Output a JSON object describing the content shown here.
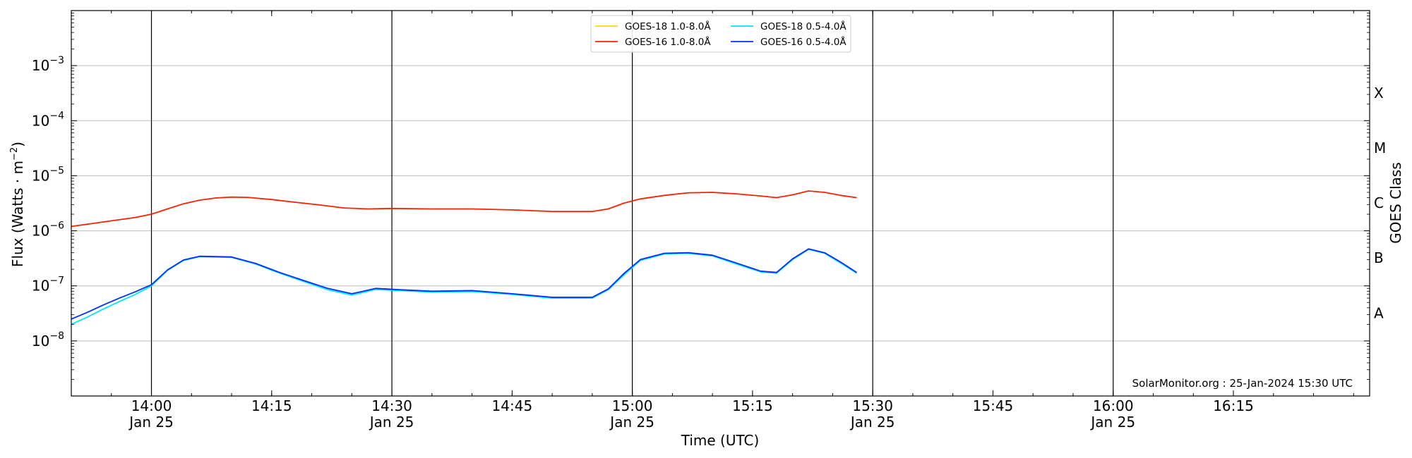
{
  "chart_data": {
    "type": "line",
    "title": "",
    "xlabel": "Time (UTC)",
    "ylabel": "Flux (Watts · m⁻²)",
    "ylabel_right": "GOES Class",
    "y_scale": "log",
    "ylim": [
      1e-09,
      0.01
    ],
    "xlim": [
      "2024-01-25 13:50",
      "2024-01-25 16:32"
    ],
    "x_ticks": [
      {
        "time": "2024-01-25 14:00",
        "label": "14:00",
        "sublabel": "Jan 25"
      },
      {
        "time": "2024-01-25 14:15",
        "label": "14:15",
        "sublabel": ""
      },
      {
        "time": "2024-01-25 14:30",
        "label": "14:30",
        "sublabel": "Jan 25"
      },
      {
        "time": "2024-01-25 14:45",
        "label": "14:45",
        "sublabel": ""
      },
      {
        "time": "2024-01-25 15:00",
        "label": "15:00",
        "sublabel": "Jan 25"
      },
      {
        "time": "2024-01-25 15:15",
        "label": "15:15",
        "sublabel": ""
      },
      {
        "time": "2024-01-25 15:30",
        "label": "15:30",
        "sublabel": "Jan 25"
      },
      {
        "time": "2024-01-25 15:45",
        "label": "15:45",
        "sublabel": ""
      },
      {
        "time": "2024-01-25 16:00",
        "label": "16:00",
        "sublabel": "Jan 25"
      },
      {
        "time": "2024-01-25 16:15",
        "label": "16:15",
        "sublabel": ""
      }
    ],
    "day_lines": [
      "2024-01-25 14:00",
      "2024-01-25 14:30",
      "2024-01-25 15:00",
      "2024-01-25 15:30",
      "2024-01-25 16:00"
    ],
    "y_ticks": [
      {
        "value": 1e-08,
        "base": "10",
        "exp": "−8"
      },
      {
        "value": 1e-07,
        "base": "10",
        "exp": "−7"
      },
      {
        "value": 1e-06,
        "base": "10",
        "exp": "−6"
      },
      {
        "value": 1e-05,
        "base": "10",
        "exp": "−5"
      },
      {
        "value": 0.0001,
        "base": "10",
        "exp": "−4"
      },
      {
        "value": 0.001,
        "base": "10",
        "exp": "−3"
      }
    ],
    "gridlines_y": [
      1e-08,
      1e-07,
      1e-06,
      1e-05,
      0.0001,
      0.001
    ],
    "goes_classes": [
      {
        "label": "A",
        "value": 3.2e-08
      },
      {
        "label": "B",
        "value": 3.2e-07
      },
      {
        "label": "C",
        "value": 3.2e-06
      },
      {
        "label": "M",
        "value": 3.2e-05
      },
      {
        "label": "X",
        "value": 0.00032
      }
    ],
    "legend_position": "top-center",
    "annotation": "SolarMonitor.org : 25-Jan-2024 15:30 UTC",
    "series": [
      {
        "name": "GOES-18 1.0-8.0Å",
        "color": "#ffd700",
        "points": []
      },
      {
        "name": "GOES-16 1.0-8.0Å",
        "color": "#ff2000",
        "points": [
          [
            "2024-01-25 13:50",
            1.2e-06
          ],
          [
            "2024-01-25 13:54",
            1.45e-06
          ],
          [
            "2024-01-25 13:58",
            1.75e-06
          ],
          [
            "2024-01-25 14:00",
            2e-06
          ],
          [
            "2024-01-25 14:02",
            2.5e-06
          ],
          [
            "2024-01-25 14:04",
            3.1e-06
          ],
          [
            "2024-01-25 14:06",
            3.6e-06
          ],
          [
            "2024-01-25 14:08",
            3.95e-06
          ],
          [
            "2024-01-25 14:10",
            4.1e-06
          ],
          [
            "2024-01-25 14:12",
            4.05e-06
          ],
          [
            "2024-01-25 14:15",
            3.7e-06
          ],
          [
            "2024-01-25 14:18",
            3.3e-06
          ],
          [
            "2024-01-25 14:21",
            2.95e-06
          ],
          [
            "2024-01-25 14:24",
            2.6e-06
          ],
          [
            "2024-01-25 14:27",
            2.5e-06
          ],
          [
            "2024-01-25 14:30",
            2.55e-06
          ],
          [
            "2024-01-25 14:35",
            2.5e-06
          ],
          [
            "2024-01-25 14:40",
            2.5e-06
          ],
          [
            "2024-01-25 14:45",
            2.4e-06
          ],
          [
            "2024-01-25 14:50",
            2.25e-06
          ],
          [
            "2024-01-25 14:55",
            2.25e-06
          ],
          [
            "2024-01-25 14:57",
            2.5e-06
          ],
          [
            "2024-01-25 14:59",
            3.2e-06
          ],
          [
            "2024-01-25 15:01",
            3.8e-06
          ],
          [
            "2024-01-25 15:04",
            4.4e-06
          ],
          [
            "2024-01-25 15:07",
            4.9e-06
          ],
          [
            "2024-01-25 15:10",
            5e-06
          ],
          [
            "2024-01-25 15:13",
            4.7e-06
          ],
          [
            "2024-01-25 15:16",
            4.3e-06
          ],
          [
            "2024-01-25 15:18",
            4e-06
          ],
          [
            "2024-01-25 15:20",
            4.5e-06
          ],
          [
            "2024-01-25 15:22",
            5.3e-06
          ],
          [
            "2024-01-25 15:24",
            5e-06
          ],
          [
            "2024-01-25 15:26",
            4.4e-06
          ],
          [
            "2024-01-25 15:28",
            4e-06
          ]
        ]
      },
      {
        "name": "GOES-18 0.5-4.0Å",
        "color": "#00e5ff",
        "points": [
          [
            "2024-01-25 13:50",
            2e-08
          ],
          [
            "2024-01-25 13:52",
            2.7e-08
          ],
          [
            "2024-01-25 13:54",
            3.8e-08
          ],
          [
            "2024-01-25 13:56",
            5.2e-08
          ],
          [
            "2024-01-25 13:58",
            7e-08
          ],
          [
            "2024-01-25 14:00",
            1e-07
          ],
          [
            "2024-01-25 14:02",
            1.9e-07
          ],
          [
            "2024-01-25 14:04",
            2.9e-07
          ],
          [
            "2024-01-25 14:06",
            3.4e-07
          ],
          [
            "2024-01-25 14:10",
            3.3e-07
          ],
          [
            "2024-01-25 14:13",
            2.5e-07
          ],
          [
            "2024-01-25 14:16",
            1.7e-07
          ],
          [
            "2024-01-25 14:19",
            1.2e-07
          ],
          [
            "2024-01-25 14:22",
            8.5e-08
          ],
          [
            "2024-01-25 14:25",
            6.8e-08
          ],
          [
            "2024-01-25 14:28",
            8.6e-08
          ],
          [
            "2024-01-25 14:31",
            8.2e-08
          ],
          [
            "2024-01-25 14:35",
            7.7e-08
          ],
          [
            "2024-01-25 14:40",
            7.9e-08
          ],
          [
            "2024-01-25 14:45",
            7e-08
          ],
          [
            "2024-01-25 14:50",
            6e-08
          ],
          [
            "2024-01-25 14:55",
            6e-08
          ],
          [
            "2024-01-25 14:57",
            8.5e-08
          ],
          [
            "2024-01-25 14:59",
            1.6e-07
          ],
          [
            "2024-01-25 15:01",
            2.9e-07
          ],
          [
            "2024-01-25 15:04",
            3.8e-07
          ],
          [
            "2024-01-25 15:07",
            3.9e-07
          ],
          [
            "2024-01-25 15:10",
            3.5e-07
          ],
          [
            "2024-01-25 15:13",
            2.5e-07
          ],
          [
            "2024-01-25 15:16",
            1.8e-07
          ],
          [
            "2024-01-25 15:18",
            1.7e-07
          ],
          [
            "2024-01-25 15:20",
            3e-07
          ],
          [
            "2024-01-25 15:22",
            4.6e-07
          ],
          [
            "2024-01-25 15:24",
            3.9e-07
          ],
          [
            "2024-01-25 15:26",
            2.6e-07
          ],
          [
            "2024-01-25 15:28",
            1.7e-07
          ]
        ]
      },
      {
        "name": "GOES-16 0.5-4.0Å",
        "color": "#0030ff",
        "points": [
          [
            "2024-01-25 13:50",
            2.5e-08
          ],
          [
            "2024-01-25 13:52",
            3.3e-08
          ],
          [
            "2024-01-25 13:54",
            4.5e-08
          ],
          [
            "2024-01-25 13:56",
            6e-08
          ],
          [
            "2024-01-25 13:58",
            7.8e-08
          ],
          [
            "2024-01-25 14:00",
            1.05e-07
          ],
          [
            "2024-01-25 14:02",
            1.95e-07
          ],
          [
            "2024-01-25 14:04",
            2.95e-07
          ],
          [
            "2024-01-25 14:06",
            3.45e-07
          ],
          [
            "2024-01-25 14:10",
            3.35e-07
          ],
          [
            "2024-01-25 14:13",
            2.55e-07
          ],
          [
            "2024-01-25 14:16",
            1.75e-07
          ],
          [
            "2024-01-25 14:19",
            1.25e-07
          ],
          [
            "2024-01-25 14:22",
            9e-08
          ],
          [
            "2024-01-25 14:25",
            7.2e-08
          ],
          [
            "2024-01-25 14:28",
            9e-08
          ],
          [
            "2024-01-25 14:31",
            8.5e-08
          ],
          [
            "2024-01-25 14:35",
            8e-08
          ],
          [
            "2024-01-25 14:40",
            8.2e-08
          ],
          [
            "2024-01-25 14:45",
            7.2e-08
          ],
          [
            "2024-01-25 14:50",
            6.2e-08
          ],
          [
            "2024-01-25 14:55",
            6.2e-08
          ],
          [
            "2024-01-25 14:57",
            8.8e-08
          ],
          [
            "2024-01-25 14:59",
            1.7e-07
          ],
          [
            "2024-01-25 15:01",
            3e-07
          ],
          [
            "2024-01-25 15:04",
            3.9e-07
          ],
          [
            "2024-01-25 15:07",
            4e-07
          ],
          [
            "2024-01-25 15:10",
            3.6e-07
          ],
          [
            "2024-01-25 15:13",
            2.6e-07
          ],
          [
            "2024-01-25 15:16",
            1.85e-07
          ],
          [
            "2024-01-25 15:18",
            1.75e-07
          ],
          [
            "2024-01-25 15:20",
            3.1e-07
          ],
          [
            "2024-01-25 15:22",
            4.7e-07
          ],
          [
            "2024-01-25 15:24",
            4e-07
          ],
          [
            "2024-01-25 15:26",
            2.7e-07
          ],
          [
            "2024-01-25 15:28",
            1.75e-07
          ]
        ]
      }
    ]
  }
}
